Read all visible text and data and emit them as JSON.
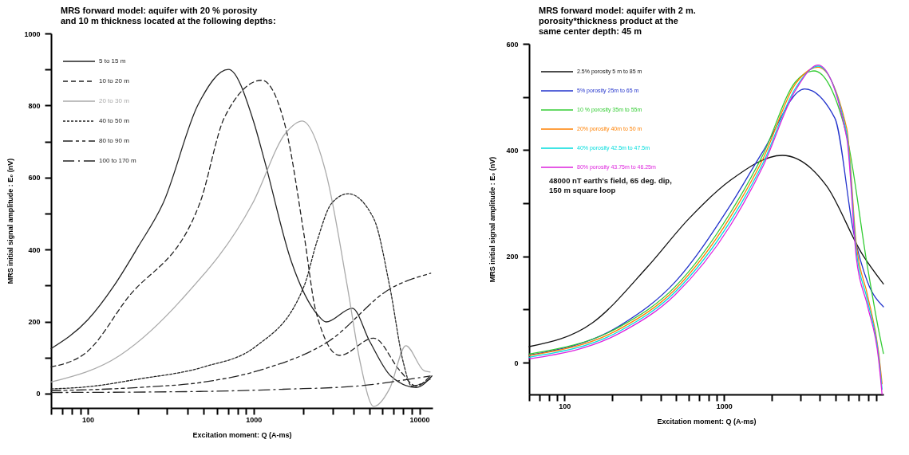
{
  "chart_data": [
    {
      "type": "line",
      "title": "MRS forward model: aquifer with 20 % porosity\nand 10 m thickness located at the following depths:",
      "xlabel": "Excitation moment: Q (A-ms)",
      "ylabel": "MRS initial signal amplitude : E₀ (nV)",
      "log": "x",
      "legend": "top left",
      "xlim": [
        60,
        12000
      ],
      "ylim": [
        -40,
        1000
      ],
      "xticks": [
        {
          "value": 60,
          "label": null
        },
        {
          "value": 70,
          "label": null
        },
        {
          "value": 80,
          "label": null
        },
        {
          "value": 90,
          "label": null
        },
        100,
        {
          "value": 200,
          "label": null
        },
        {
          "value": 300,
          "label": null
        },
        {
          "value": 400,
          "label": null
        },
        {
          "value": 500,
          "label": null
        },
        {
          "value": 600,
          "label": null
        },
        {
          "value": 700,
          "label": null
        },
        {
          "value": 800,
          "label": null
        },
        {
          "value": 900,
          "label": null
        },
        1000,
        {
          "value": 2000,
          "label": null
        },
        {
          "value": 3000,
          "label": null
        },
        {
          "value": 4000,
          "label": null
        },
        {
          "value": 5000,
          "label": null
        },
        {
          "value": 6000,
          "label": null
        },
        {
          "value": 7000,
          "label": null
        },
        {
          "value": 8000,
          "label": null
        },
        {
          "value": 9000,
          "label": null
        },
        10000
      ],
      "yticks": [
        0,
        {
          "value": 100,
          "label": null
        },
        200,
        {
          "value": 300,
          "label": null
        },
        400,
        {
          "value": 500,
          "label": null
        },
        600,
        {
          "value": 700,
          "label": null
        },
        800,
        {
          "value": 900,
          "label": null
        },
        1000
      ],
      "series": [
        {
          "name": "5 to 15 m",
          "color": "#222222",
          "line_style": "solid",
          "x": [
            60,
            100,
            144,
            200,
            284,
            463,
            705,
            1000,
            1160,
            1690,
            2440,
            2730,
            3940,
            5000,
            6710,
            9560,
            11900
          ],
          "values": [
            125,
            205,
            300,
            406,
            528,
            803,
            900,
            755,
            649,
            366,
            218,
            199,
            237,
            146,
            49,
            17,
            49
          ]
        },
        {
          "name": "10 to 20 m",
          "color": "#222222",
          "line_style": "dashed",
          "x": [
            60,
            100,
            170,
            473,
            667,
            1120,
            1570,
            2020,
            2380,
            3300,
            5300,
            7650,
            9560,
            11600
          ],
          "values": [
            74,
            118,
            260,
            528,
            767,
            870,
            733,
            437,
            226,
            106,
            154,
            63,
            21,
            49
          ]
        },
        {
          "name": "20 to 30 m",
          "color": "#aaaaaa",
          "line_style": "solid",
          "x": [
            60,
            156,
            366,
            985,
            1570,
            1960,
            2730,
            3680,
            4400,
            5300,
            6630,
            8280,
            10700,
            11600
          ],
          "values": [
            32,
            106,
            260,
            528,
            725,
            757,
            613,
            296,
            85,
            -36,
            15,
            133,
            63,
            60
          ]
        },
        {
          "name": "40 to 50 m",
          "color": "#222222",
          "line_style": "dotted",
          "x": [
            60,
            100,
            200,
            500,
            1030,
            2020,
            2400,
            2950,
            3720,
            5300,
            6630,
            8010,
            8970,
            11600
          ],
          "values": [
            13,
            19,
            40,
            74,
            131,
            300,
            420,
            528,
            555,
            486,
            296,
            85,
            21,
            40
          ]
        },
        {
          "name": "80 to 90 m",
          "color": "#222222",
          "line_style": "dashdotdot",
          "x": [
            60,
            202,
            500,
            1110,
            2850,
            6710,
            11700
          ],
          "values": [
            8,
            17,
            32,
            66,
            146,
            292,
            334
          ]
        },
        {
          "name": "100 to 170 m",
          "color": "#222222",
          "line_style": "dashdot",
          "x": [
            60,
            500,
            1500,
            4260,
            8700,
            11600
          ],
          "values": [
            3,
            6,
            12,
            21,
            40,
            49
          ]
        }
      ]
    },
    {
      "type": "line",
      "title": "MRS forward model: aquifer with 2 m.\nporosity*thickness product at the\nsame center depth: 45 m",
      "xlabel": "Excitation moment: Q (A-ms)",
      "ylabel": "MRS initial signal amplitude : E₀ (nV)",
      "log": "x",
      "legend": "top left",
      "annotations": [
        "48000 nT earth's field, 65 deg. dip,\n150 m square loop"
      ],
      "xlim": [
        60,
        10000
      ],
      "ylim": [
        -60,
        600
      ],
      "xticks": [
        {
          "value": 60,
          "label": null
        },
        {
          "value": 70,
          "label": null
        },
        {
          "value": 80,
          "label": null
        },
        {
          "value": 90,
          "label": null
        },
        100,
        {
          "value": 200,
          "label": null
        },
        {
          "value": 300,
          "label": null
        },
        {
          "value": 400,
          "label": null
        },
        {
          "value": 500,
          "label": null
        },
        {
          "value": 600,
          "label": null
        },
        {
          "value": 700,
          "label": null
        },
        {
          "value": 800,
          "label": null
        },
        {
          "value": 900,
          "label": null
        },
        1000,
        {
          "value": 2000,
          "label": null
        },
        {
          "value": 3000,
          "label": null
        },
        {
          "value": 4000,
          "label": null
        },
        {
          "value": 5000,
          "label": null
        },
        {
          "value": 6000,
          "label": null
        },
        {
          "value": 7000,
          "label": null
        },
        {
          "value": 8000,
          "label": null
        },
        {
          "value": 9000,
          "label": null
        }
      ],
      "yticks": [
        0,
        {
          "value": 100,
          "label": null
        },
        200,
        {
          "value": 300,
          "label": null
        },
        400,
        {
          "value": 500,
          "label": null
        },
        600
      ],
      "series": [
        {
          "name": "2.5% porosity 5 m to 85 m",
          "color": "#111111",
          "line_style": "solid",
          "x": [
            60,
            150,
            331,
            603,
            1096,
            2320,
            4410,
            7330,
            10000
          ],
          "values": [
            30,
            75,
            180,
            271,
            343,
            390,
            332,
            205,
            148
          ]
        },
        {
          "name": "5% porosity 25m to 65 m",
          "color": "#2233cc",
          "line_style": "solid",
          "x": [
            60,
            224,
            495,
            1096,
            1760,
            3200,
            4960,
            6530,
            7940,
            10000
          ],
          "values": [
            14,
            70,
            152,
            296,
            398,
            515,
            460,
            242,
            152,
            105
          ]
        },
        {
          "name": "10 % porosity 35m to 55m",
          "color": "#33cc33",
          "line_style": "solid",
          "x": [
            60,
            224,
            495,
            1096,
            1760,
            2800,
            3670,
            5820,
            7940,
            9330,
            10000
          ],
          "values": [
            16,
            68,
            143,
            282,
            392,
            528,
            549,
            433,
            180,
            61,
            17
          ]
        },
        {
          "name": "20% porosity 40m to 50 m",
          "color": "#ff8000",
          "line_style": "solid",
          "x": [
            60,
            224,
            495,
            1096,
            1760,
            2800,
            3890,
            5890,
            6760,
            7940,
            9330,
            9800
          ],
          "values": [
            13,
            64,
            138,
            274,
            384,
            524,
            556,
            440,
            222,
            127,
            19,
            -40
          ]
        },
        {
          "name": "40% porosity 42.5m to 47.5m",
          "color": "#00dddd",
          "line_style": "solid",
          "x": [
            60,
            224,
            495,
            1096,
            1760,
            2800,
            3890,
            5890,
            6760,
            7940,
            9330,
            9800
          ],
          "values": [
            10,
            60,
            133,
            266,
            376,
            516,
            558,
            431,
            210,
            117,
            12,
            -50
          ]
        },
        {
          "name": "80% porosity 43.75m to 46.25m",
          "color": "#dd22dd",
          "line_style": "solid",
          "x": [
            60,
            224,
            495,
            1096,
            1760,
            2800,
            3890,
            5890,
            6760,
            7940,
            9330,
            9800
          ],
          "values": [
            7,
            56,
            128,
            258,
            370,
            512,
            560,
            422,
            197,
            107,
            5,
            -60
          ]
        }
      ]
    }
  ]
}
